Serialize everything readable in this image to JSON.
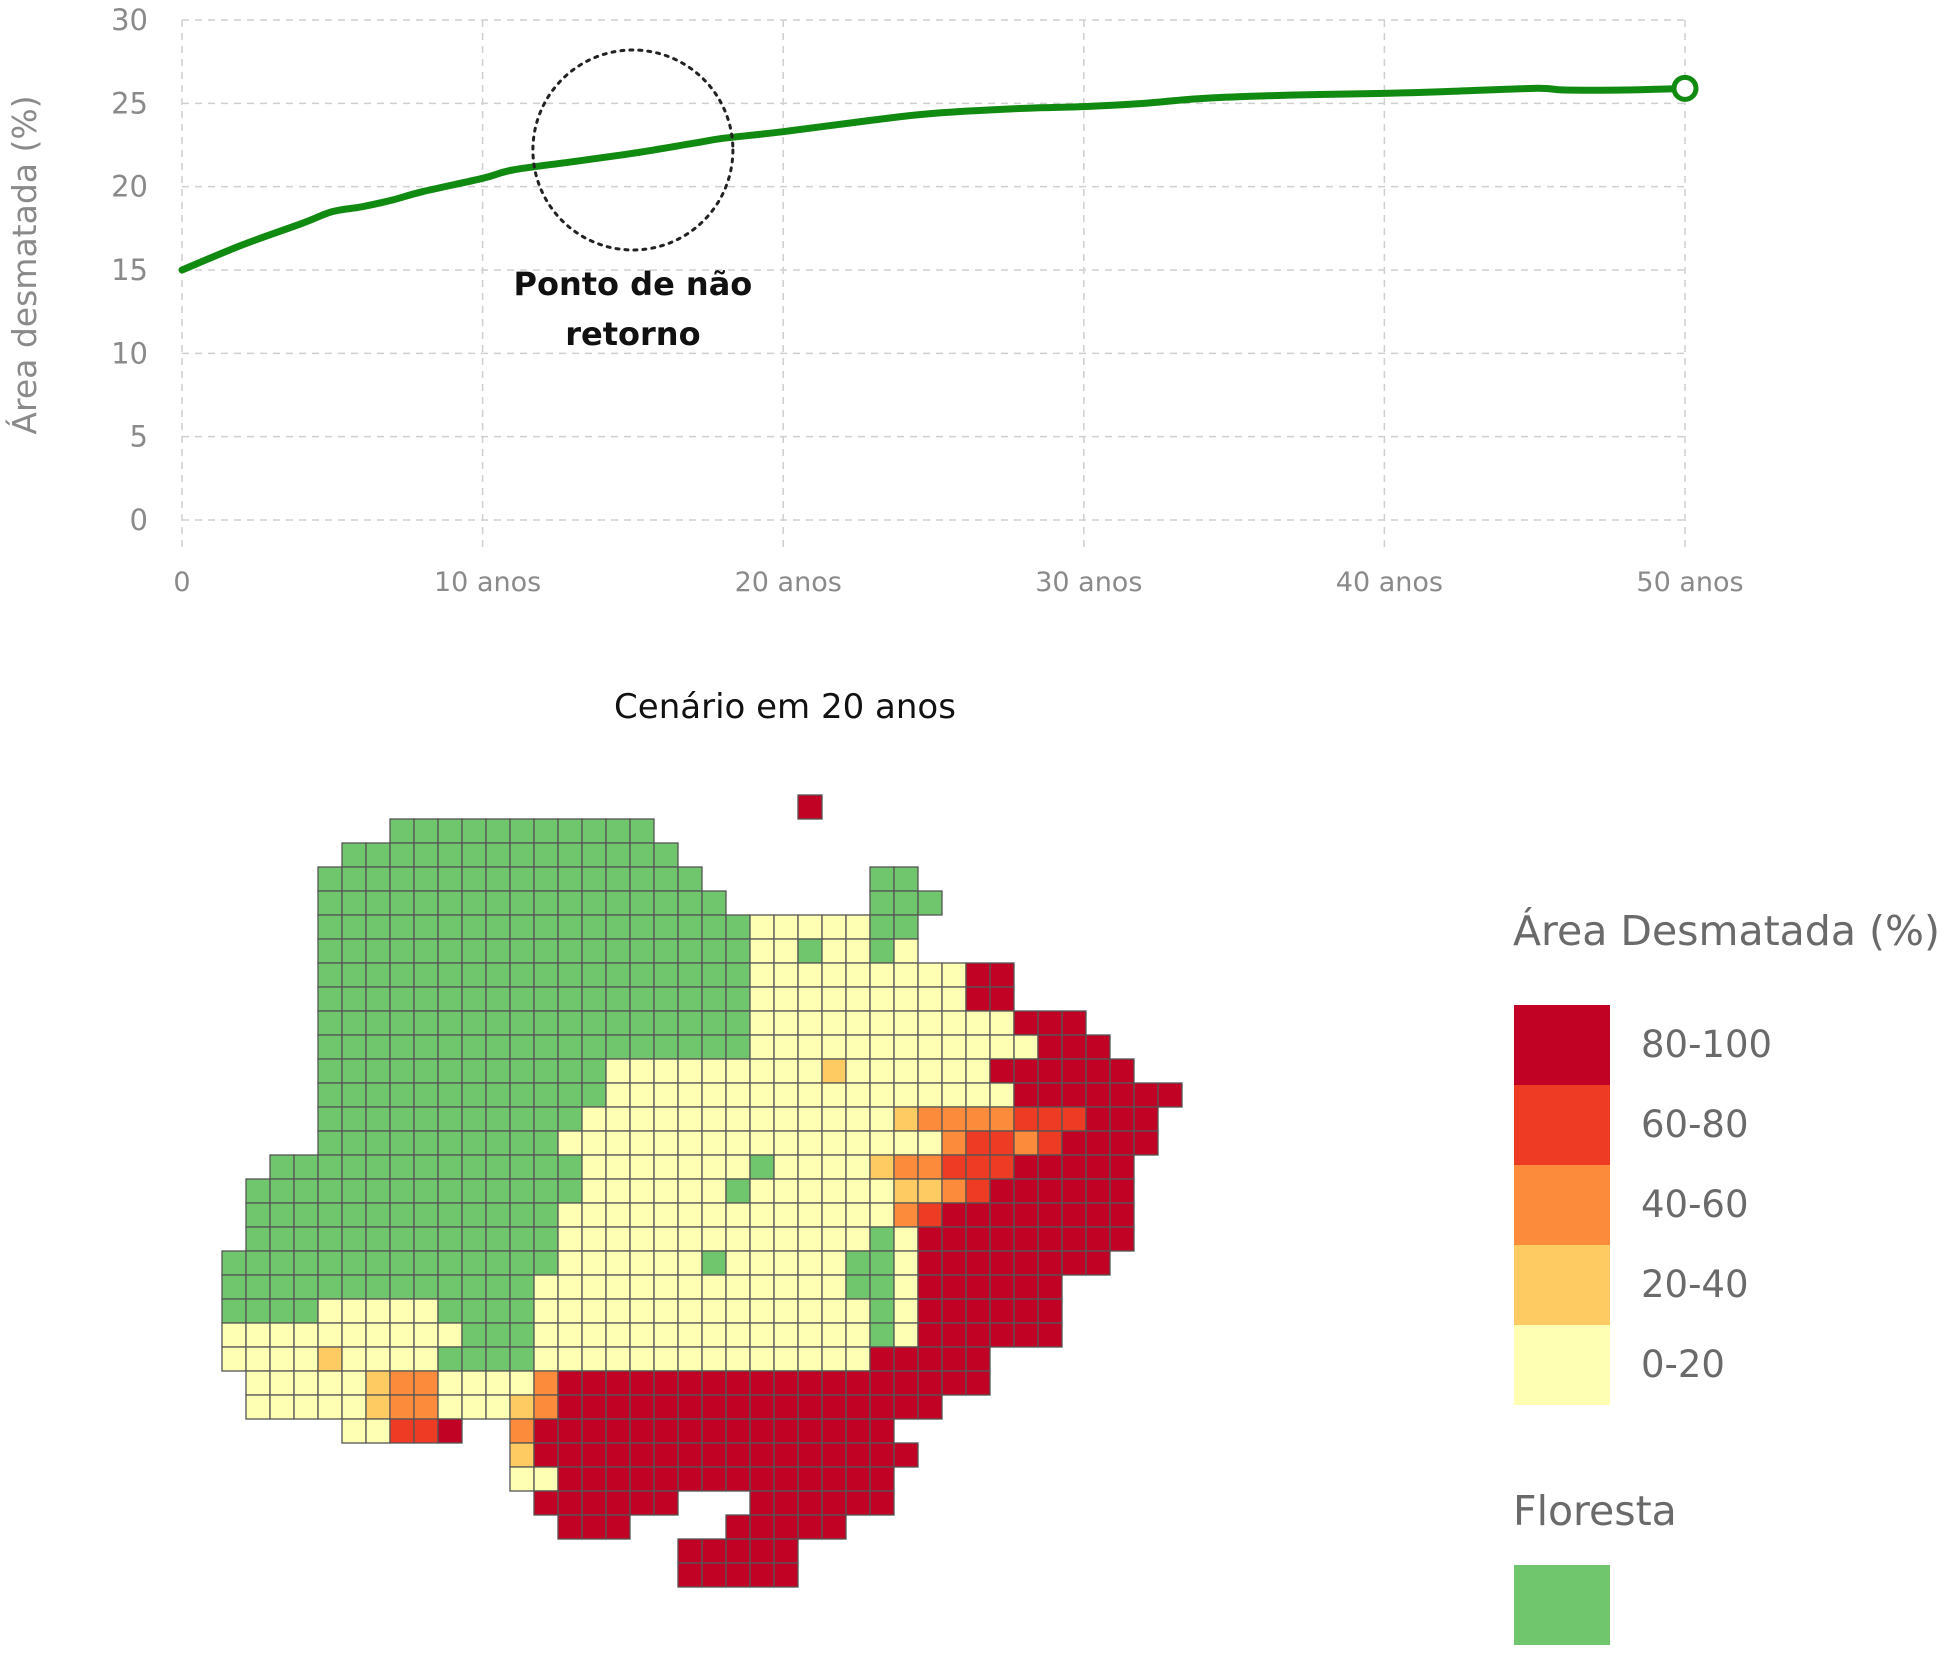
{
  "chart_data": [
    {
      "type": "line",
      "title": "",
      "xlabel": "",
      "ylabel": "Área desmatada (%)",
      "ylim": [
        0,
        30
      ],
      "xlim": [
        0,
        50
      ],
      "grid": true,
      "x_ticks": [
        0,
        10,
        20,
        30,
        40,
        50
      ],
      "x_tick_labels": [
        "0",
        "10 anos",
        "20 anos",
        "30 anos",
        "40 anos",
        "50 anos"
      ],
      "y_ticks": [
        0,
        5,
        10,
        15,
        20,
        25,
        30
      ],
      "y_tick_labels": [
        "0",
        "5",
        "10",
        "15",
        "20",
        "25",
        "30"
      ],
      "series": [
        {
          "color": "#118a11",
          "x": [
            0,
            2,
            4,
            5,
            6,
            7,
            8,
            10,
            11,
            13,
            15,
            17,
            18,
            20,
            23,
            25,
            28,
            30,
            32,
            34,
            37,
            40,
            42,
            45,
            46,
            48,
            50
          ],
          "y": [
            15.0,
            16.5,
            17.8,
            18.5,
            18.8,
            19.2,
            19.7,
            20.5,
            21.0,
            21.5,
            22.0,
            22.6,
            22.9,
            23.3,
            24.0,
            24.4,
            24.7,
            24.8,
            25.0,
            25.3,
            25.5,
            25.6,
            25.7,
            25.9,
            25.8,
            25.8,
            25.9
          ]
        }
      ],
      "end_marker": {
        "x": 50,
        "y": 25.9
      },
      "annotation": {
        "text_line1": "Ponto de não",
        "text_line2": "retorno",
        "x": 15,
        "y": 22.2
      }
    },
    {
      "type": "heatmap",
      "title": "Cenário em 20 anos",
      "legend": {
        "title": "Área Desmatada (%)",
        "entries": [
          {
            "label": "80-100",
            "color": "#c20225"
          },
          {
            "label": "60-80",
            "color": "#ee3c24"
          },
          {
            "label": "40-60",
            "color": "#fc8c3b"
          },
          {
            "label": "20-40",
            "color": "#fdcb62"
          },
          {
            "label": "0-20",
            "color": "#feffb3"
          }
        ],
        "forest_title": "Floresta",
        "forest_color": "#6fc66c"
      },
      "category_order": [
        "Floresta",
        "0-20",
        "20-40",
        "40-60",
        "60-80",
        "80-100"
      ],
      "grid_rows": [
        "..........................0......",
        ".........11111111111..............",
        ".......11111111111111...........",
        "......1111111111111111.......11........",
        "......11111111111111111......111.......",
        "......1111111111111111112222211.......",
        "......1111111111111111112212212.......",
        "......11111111111111111122222222266....",
        "......11111111111111111122222222266....",
        "......11111111111111111122222222222666...",
        "......111111111111111111222222222222666..",
        "......1111111111112222222223222222666666.",
        "......111111111111222222222222222226666666",
        "......11111111111222222222222234444555666",
        "......11111111112222222222222222455456666",
        "....111111111111122222221222234455566666",
        "...1111111111111122222212222223345666666",
        "...1111111111111222222222222224566666666",
        "...1111111111111222222222222212666666666",
        "..1111111111111122222212222211266666666",
        "..11111111111112222222222222112666666",
        "..11112222211112222222222222212666666",
        "..22222222221112222222222222212666666",
        "..22223222211112222222222222266666",
        "...2222234422224666666666666666666",
        "...22222344222346666666666666666",
        ".......22556..4666666666666666",
        "..............36666666666666666",
        "..............2266666666666666",
        "...............666666...666666",
        "................666....66666",
        ".....................66666",
        ".....................66666"
      ]
    }
  ]
}
